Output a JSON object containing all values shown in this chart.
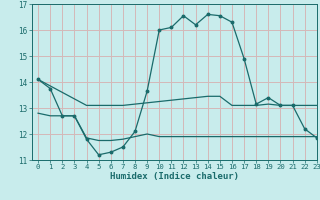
{
  "title": "",
  "xlabel": "Humidex (Indice chaleur)",
  "bg_color": "#c8ecec",
  "grid_color": "#d4b8b8",
  "line_color": "#1a6b6b",
  "xlim": [
    -0.5,
    23
  ],
  "ylim": [
    11,
    17
  ],
  "yticks": [
    11,
    12,
    13,
    14,
    15,
    16,
    17
  ],
  "xticks": [
    0,
    1,
    2,
    3,
    4,
    5,
    6,
    7,
    8,
    9,
    10,
    11,
    12,
    13,
    14,
    15,
    16,
    17,
    18,
    19,
    20,
    21,
    22,
    23
  ],
  "series1_x": [
    0,
    1,
    2,
    3,
    4,
    5,
    6,
    7,
    8,
    9,
    10,
    11,
    12,
    13,
    14,
    15,
    16,
    17,
    18,
    19,
    20,
    21,
    22,
    23
  ],
  "series1_y": [
    14.1,
    13.75,
    12.7,
    12.7,
    11.8,
    11.2,
    11.3,
    11.5,
    12.1,
    13.65,
    16.0,
    16.1,
    16.55,
    16.2,
    16.6,
    16.55,
    16.3,
    14.9,
    13.15,
    13.4,
    13.1,
    13.1,
    12.2,
    11.85
  ],
  "series2_x": [
    0,
    1,
    2,
    3,
    4,
    5,
    6,
    7,
    8,
    9,
    10,
    11,
    12,
    13,
    14,
    15,
    16,
    17,
    18,
    19,
    20,
    21,
    22,
    23
  ],
  "series2_y": [
    14.1,
    13.85,
    13.6,
    13.35,
    13.1,
    13.1,
    13.1,
    13.1,
    13.15,
    13.2,
    13.25,
    13.3,
    13.35,
    13.4,
    13.45,
    13.45,
    13.1,
    13.1,
    13.1,
    13.15,
    13.1,
    13.1,
    13.1,
    13.1
  ],
  "series3_x": [
    0,
    1,
    2,
    3,
    4,
    5,
    6,
    7,
    8,
    9,
    10,
    11,
    12,
    13,
    14,
    15,
    16,
    17,
    18,
    19,
    20,
    21,
    22,
    23
  ],
  "series3_y": [
    12.8,
    12.7,
    12.7,
    12.7,
    11.85,
    11.75,
    11.75,
    11.8,
    11.9,
    12.0,
    11.9,
    11.9,
    11.9,
    11.9,
    11.9,
    11.9,
    11.9,
    11.9,
    11.9,
    11.9,
    11.9,
    11.9,
    11.9,
    11.9
  ]
}
